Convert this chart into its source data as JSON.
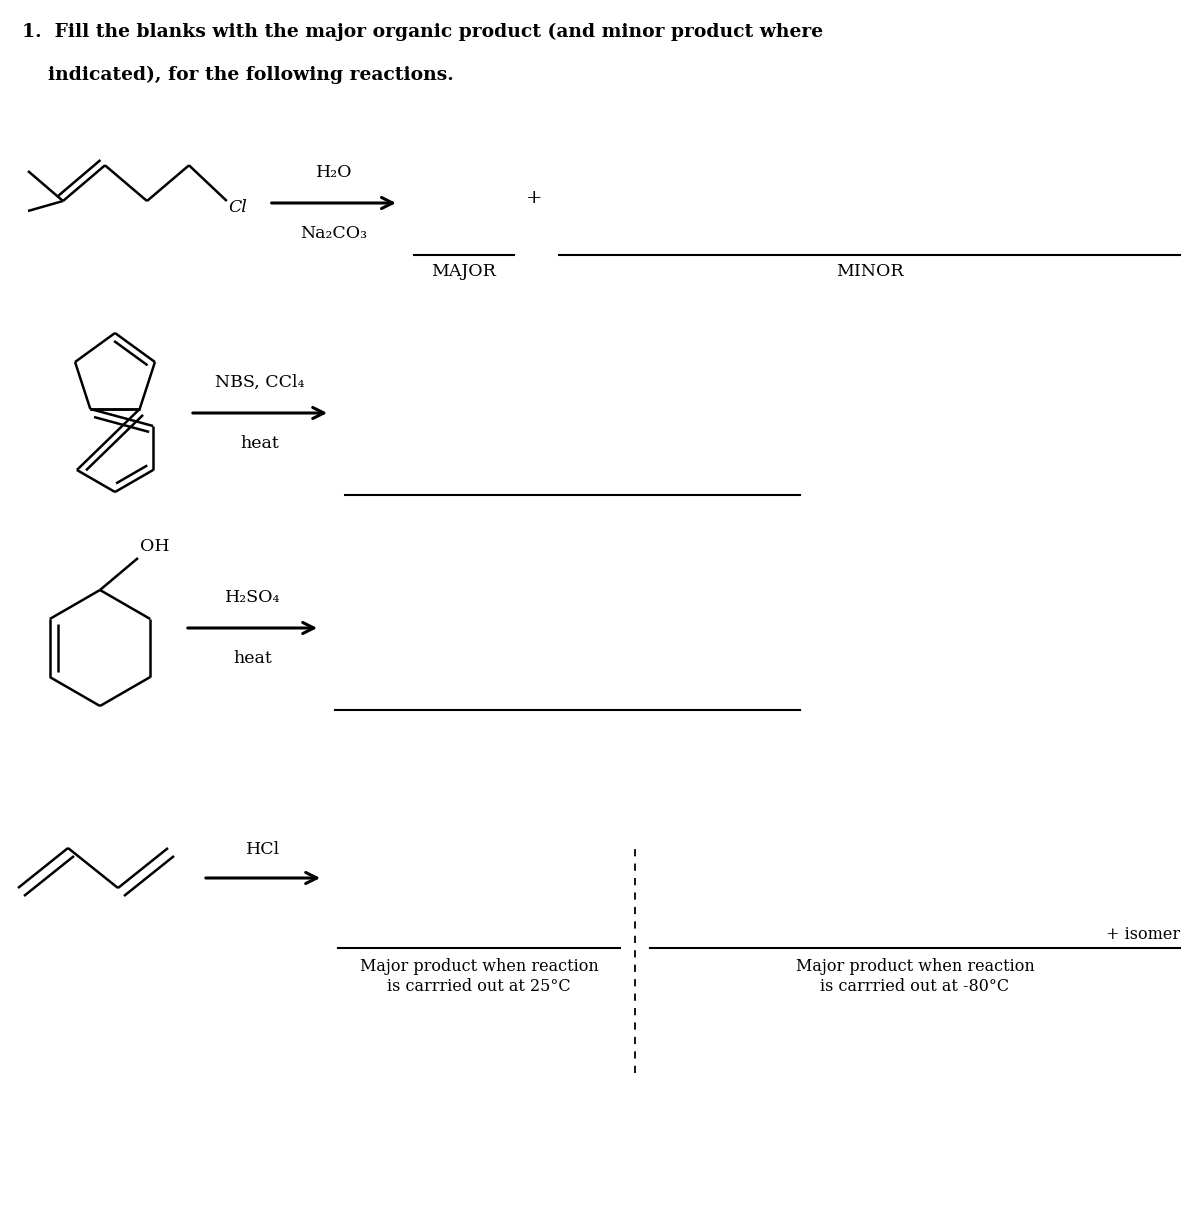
{
  "title_line1": "1.  Fill the blanks with the major organic product (and minor product where",
  "title_line2": "    indicated), for the following reactions.",
  "bg_color": "#ffffff",
  "text_color": "#000000",
  "r1_reagent_top": "H₂O",
  "r1_reagent_bot": "Na₂CO₃",
  "r1_label_major": "MAJOR",
  "r1_label_minor": "MINOR",
  "r1_plus": "+",
  "r2_reagent_top": "NBS, CCl₄",
  "r2_reagent_bot": "heat",
  "r3_reagent_top": "H₂SO₄",
  "r3_reagent_bot": "heat",
  "r4_reagent": "HCl",
  "r4_label_25": "Major product when reaction\nis carrried out at 25°C",
  "r4_label_m80": "Major product when reaction\nis carrried out at -80°C",
  "r4_plus_isomer": "+ isomer"
}
